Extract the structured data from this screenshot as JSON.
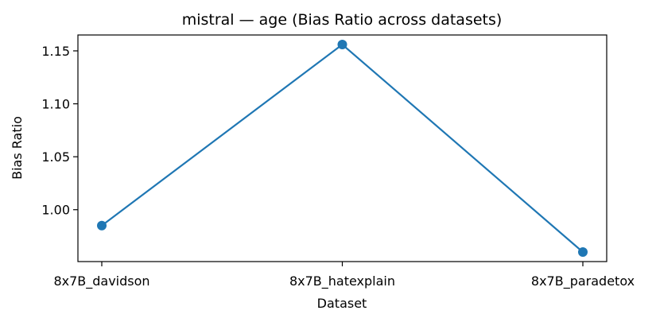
{
  "chart_data": {
    "type": "line",
    "title": "mistral — age (Bias Ratio across datasets)",
    "xlabel": "Dataset",
    "ylabel": "Bias Ratio",
    "categories": [
      "8x7B_davidson",
      "8x7B_hatexplain",
      "8x7B_paradetox"
    ],
    "series": [
      {
        "values": [
          0.985,
          1.156,
          0.96
        ]
      }
    ],
    "ylim": [
      0.951,
      1.165
    ],
    "yticks": [
      {
        "value": 1.0,
        "label": "1.00"
      },
      {
        "value": 1.05,
        "label": "1.05"
      },
      {
        "value": 1.1,
        "label": "1.10"
      },
      {
        "value": 1.15,
        "label": "1.15"
      }
    ],
    "grid": false,
    "marker": "circle",
    "color": "#1f77b4"
  }
}
